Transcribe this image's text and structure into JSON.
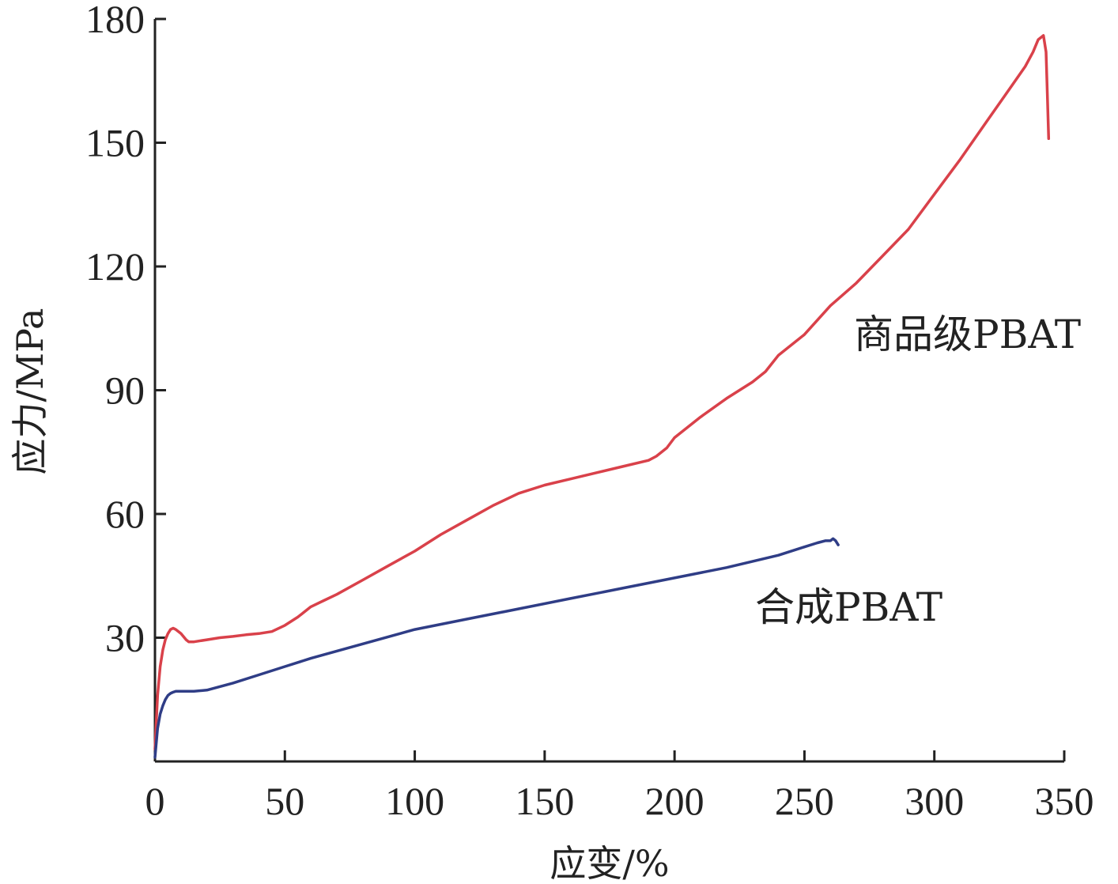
{
  "chart_data": {
    "type": "line",
    "xlabel": "应变/%",
    "ylabel": "应力/MPa",
    "xlim": [
      0,
      350
    ],
    "ylim": [
      0,
      180
    ],
    "xticks": [
      0,
      50,
      100,
      150,
      200,
      250,
      300,
      350
    ],
    "yticks": [
      30,
      60,
      90,
      120,
      150,
      180
    ],
    "x_tick_labels": [
      "0",
      "50",
      "100",
      "150",
      "200",
      "250",
      "300",
      "350"
    ],
    "y_tick_labels": [
      "30",
      "60",
      "90",
      "120",
      "150",
      "180"
    ],
    "grid": false,
    "legend": "none",
    "series": [
      {
        "name": "商品级PBAT",
        "color": "#d9414a",
        "x": [
          0,
          1,
          2,
          3,
          4,
          5,
          6,
          7,
          8,
          10,
          12,
          13,
          15,
          20,
          25,
          30,
          35,
          40,
          45,
          50,
          55,
          60,
          65,
          70,
          80,
          90,
          100,
          110,
          120,
          130,
          140,
          150,
          160,
          170,
          180,
          190,
          193,
          197,
          200,
          210,
          220,
          230,
          235,
          240,
          250,
          260,
          270,
          280,
          290,
          300,
          310,
          320,
          330,
          335,
          338,
          340,
          342,
          343,
          343.5,
          344
        ],
        "y": [
          3,
          16,
          23,
          27,
          29.5,
          31,
          32,
          32.3,
          32,
          31,
          29.5,
          29,
          29,
          29.5,
          30,
          30.3,
          30.7,
          31,
          31.5,
          33,
          35,
          37.5,
          39,
          40.5,
          44,
          47.5,
          51,
          55,
          58.5,
          62,
          65,
          67,
          68.5,
          70,
          71.5,
          73,
          74,
          76,
          78.5,
          83.5,
          88,
          92,
          94.5,
          98.5,
          103.5,
          110.5,
          116,
          122.5,
          129,
          137.5,
          146,
          155,
          164,
          168.5,
          172,
          175,
          176,
          172,
          162,
          151
        ]
      },
      {
        "name": "合成PBAT",
        "color": "#2f3d86",
        "x": [
          0,
          1,
          2,
          3,
          4,
          5,
          6,
          7,
          8,
          10,
          15,
          20,
          30,
          40,
          50,
          60,
          80,
          100,
          120,
          140,
          160,
          180,
          200,
          220,
          240,
          250,
          255,
          258,
          260,
          261,
          262,
          263
        ],
        "y": [
          1,
          8,
          11.5,
          13.5,
          15,
          16,
          16.5,
          16.8,
          17,
          17,
          17,
          17.3,
          19,
          21,
          23,
          25,
          28.5,
          32,
          34.5,
          37,
          39.5,
          42,
          44.5,
          47,
          50,
          52,
          53,
          53.5,
          53.5,
          54,
          53.5,
          52.5
        ]
      }
    ]
  }
}
